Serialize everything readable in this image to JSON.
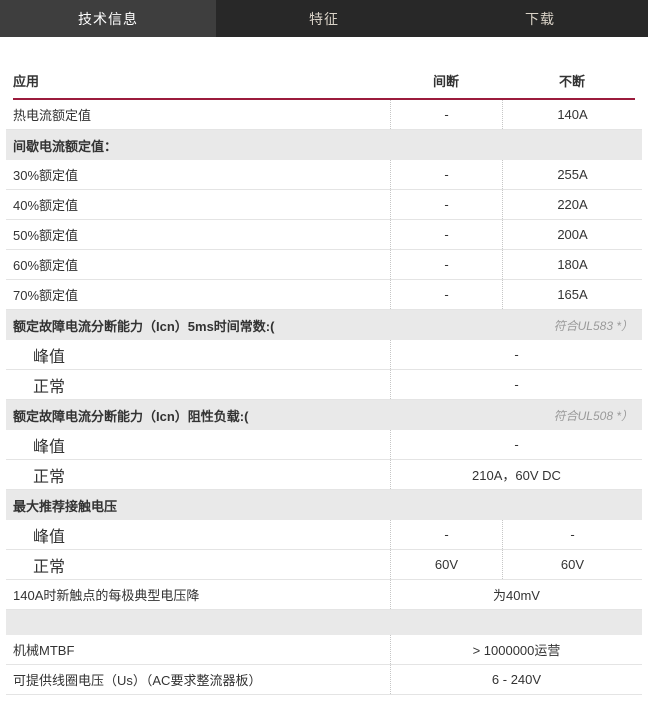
{
  "tabs": [
    {
      "id": "tech-info",
      "label": "技术信息",
      "active": true
    },
    {
      "id": "features",
      "label": "特征",
      "active": false
    },
    {
      "id": "downloads",
      "label": "下载",
      "active": false
    }
  ],
  "table": {
    "header": {
      "col1": "应用",
      "col2": "间断",
      "col3": "不断"
    },
    "rows": [
      {
        "type": "data",
        "label": "热电流额定值",
        "v1": "-",
        "v2": "140A"
      },
      {
        "type": "section",
        "label": "间歇电流额定值：",
        "note": ""
      },
      {
        "type": "data",
        "label": "30%额定值",
        "v1": "-",
        "v2": "255A"
      },
      {
        "type": "data",
        "label": "40%额定值",
        "v1": "-",
        "v2": "220A"
      },
      {
        "type": "data",
        "label": "50%额定值",
        "v1": "-",
        "v2": "200A"
      },
      {
        "type": "data",
        "label": "60%额定值",
        "v1": "-",
        "v2": "180A"
      },
      {
        "type": "data",
        "label": "70%额定值",
        "v1": "-",
        "v2": "165A"
      },
      {
        "type": "section",
        "label": "额定故障电流分断能力（Icn）5ms时间常数:(",
        "note": "符合UL583 *）"
      },
      {
        "type": "merged",
        "label": "峰值",
        "value": "-",
        "indent": true
      },
      {
        "type": "merged",
        "label": "正常",
        "value": "-",
        "indent": true
      },
      {
        "type": "section",
        "label": "额定故障电流分断能力（Icn）阻性负载:(",
        "note": "符合UL508 *）"
      },
      {
        "type": "merged",
        "label": "峰值",
        "value": "-",
        "indent": true
      },
      {
        "type": "merged",
        "label": "正常",
        "value": "210A，60V DC",
        "indent": true
      },
      {
        "type": "section",
        "label": "最大推荐接触电压",
        "note": ""
      },
      {
        "type": "data",
        "label": "峰值",
        "v1": "-",
        "v2": "-",
        "indent": true
      },
      {
        "type": "data",
        "label": "正常",
        "v1": "60V",
        "v2": "60V",
        "indent": true
      },
      {
        "type": "merged",
        "label": "140A时新触点的每极典型电压降",
        "value": "为40mV"
      },
      {
        "type": "spacer"
      },
      {
        "type": "merged",
        "label": "机械MTBF",
        "value": "> 1000000运营"
      },
      {
        "type": "merged",
        "label": "可提供线圈电压（Us）（AC要求整流器板）",
        "value": "6 - 240V"
      }
    ]
  },
  "colors": {
    "accent_red": "#9b1b3c",
    "tabbar_bg": "#282828",
    "tab_active_bg": "#3e3e3e",
    "section_bg": "#e9e9e9",
    "text": "#333333",
    "note_text": "#9a9a9a"
  }
}
